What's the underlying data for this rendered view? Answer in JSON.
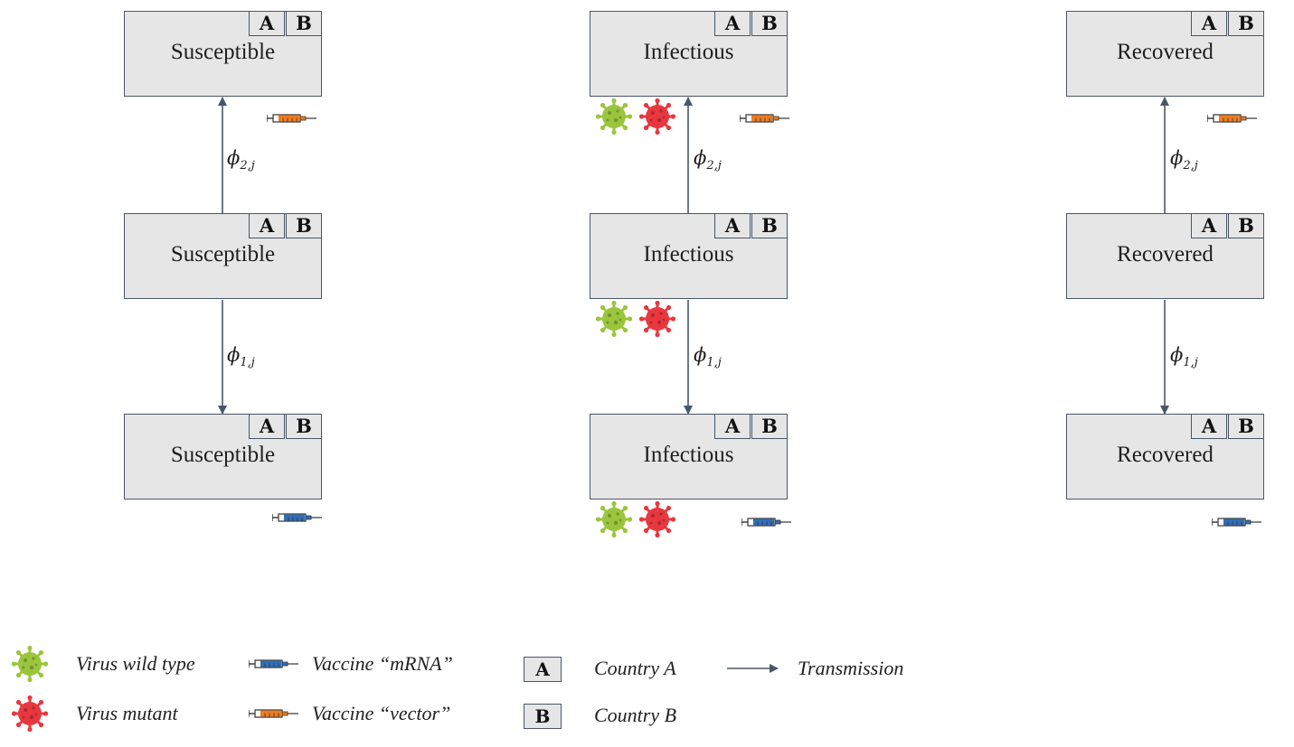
{
  "tags": {
    "a": "A",
    "b": "B"
  },
  "columns": [
    {
      "id": "susceptible",
      "boxes": [
        {
          "label": "Susceptible",
          "vaccine": "vector"
        },
        {
          "label": "Susceptible",
          "vaccine": "none"
        },
        {
          "label": "Susceptible",
          "vaccine": "mRNA"
        }
      ]
    },
    {
      "id": "infectious",
      "boxes": [
        {
          "label": "Infectious",
          "vaccine": "vector",
          "viruses": [
            "wild type",
            "mutant"
          ]
        },
        {
          "label": "Infectious",
          "vaccine": "none",
          "viruses": [
            "wild type",
            "mutant"
          ]
        },
        {
          "label": "Infectious",
          "vaccine": "mRNA",
          "viruses": [
            "wild type",
            "mutant"
          ]
        }
      ]
    },
    {
      "id": "recovered",
      "boxes": [
        {
          "label": "Recovered",
          "vaccine": "vector"
        },
        {
          "label": "Recovered",
          "vaccine": "none"
        },
        {
          "label": "Recovered",
          "vaccine": "mRNA"
        }
      ]
    }
  ],
  "transitions": {
    "up": {
      "symbol": "ϕ",
      "sub": "2,j",
      "from": "middle",
      "to": "top"
    },
    "down": {
      "symbol": "ϕ",
      "sub": "1,j",
      "from": "middle",
      "to": "bottom"
    }
  },
  "legend": {
    "virus_wild": "Virus wild type",
    "virus_mutant": "Virus mutant",
    "vaccine_mrna": "Vaccine “mRNA”",
    "vaccine_vector": "Vaccine “vector”",
    "country_a_tag": "A",
    "country_a": "Country A",
    "country_b_tag": "B",
    "country_b": "Country B",
    "transmission": "Transmission"
  },
  "colors": {
    "box_fill": "#e6e6e6",
    "box_border": "#4a5668",
    "arrow": "#4a5668",
    "virus_wild": "#9bc53d",
    "virus_mutant": "#e8373e",
    "vaccine_mrna": "#2f6fb8",
    "vaccine_vector": "#f07d1e"
  }
}
